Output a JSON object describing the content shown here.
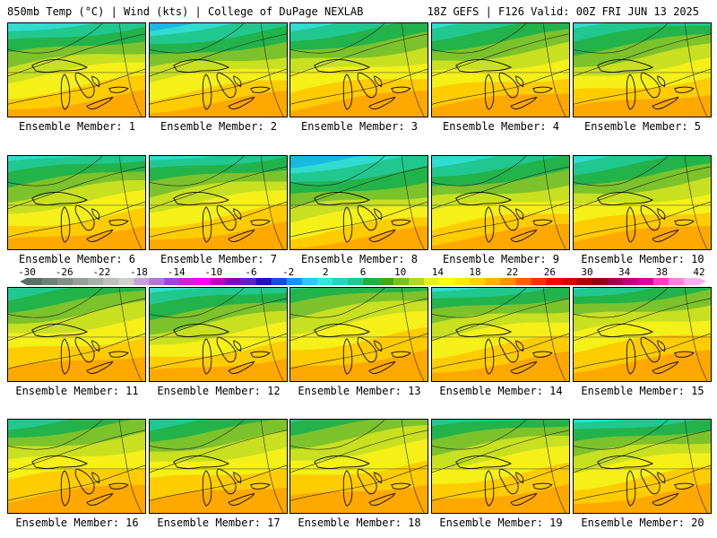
{
  "header": {
    "left": "850mb Temp (°C) | Wind (kts) | College of DuPage NEXLAB",
    "right": "18Z GEFS | F126 Valid: 00Z FRI JUN 13 2025"
  },
  "colorbar": {
    "ticks": [
      "-30",
      "-26",
      "-22",
      "-18",
      "-14",
      "-10",
      "-6",
      "-2",
      "2",
      "6",
      "10",
      "14",
      "18",
      "22",
      "26",
      "30",
      "34",
      "38",
      "42"
    ],
    "colors": [
      "#5b6f66",
      "#6f8078",
      "#828f88",
      "#969f9b",
      "#a8b0ac",
      "#bcc0bd",
      "#cfcfcf",
      "#c89fd6",
      "#b476d3",
      "#a046d2",
      "#cc22cc",
      "#ff00ff",
      "#c000c0",
      "#8a00c0",
      "#6020c8",
      "#2010c0",
      "#1050e0",
      "#2090ff",
      "#30c8f0",
      "#30e8e0",
      "#20d8c0",
      "#20c890",
      "#20b040",
      "#40a820",
      "#78c020",
      "#b0d820",
      "#e8f018",
      "#ffff00",
      "#ffe800",
      "#ffd000",
      "#ffb000",
      "#ff9000",
      "#ff6000",
      "#ff3000",
      "#ff0000",
      "#d80000",
      "#b00000",
      "#900010",
      "#a00050",
      "#c00080",
      "#e000a0",
      "#ff40c0",
      "#ff80e0",
      "#ffb0f0"
    ],
    "range": [
      -30,
      42
    ]
  },
  "panels": [
    {
      "label": "Ensemble Member: 1"
    },
    {
      "label": "Ensemble Member: 2"
    },
    {
      "label": "Ensemble Member: 3"
    },
    {
      "label": "Ensemble Member: 4"
    },
    {
      "label": "Ensemble Member: 5"
    },
    {
      "label": "Ensemble Member: 6"
    },
    {
      "label": "Ensemble Member: 7"
    },
    {
      "label": "Ensemble Member: 8"
    },
    {
      "label": "Ensemble Member: 9"
    },
    {
      "label": "Ensemble Member: 10"
    },
    {
      "label": "Ensemble Member: 11"
    },
    {
      "label": "Ensemble Member: 12"
    },
    {
      "label": "Ensemble Member: 13"
    },
    {
      "label": "Ensemble Member: 14"
    },
    {
      "label": "Ensemble Member: 15"
    },
    {
      "label": "Ensemble Member: 16"
    },
    {
      "label": "Ensemble Member: 17"
    },
    {
      "label": "Ensemble Member: 18"
    },
    {
      "label": "Ensemble Member: 19"
    },
    {
      "label": "Ensemble Member: 20"
    }
  ],
  "map_colors": {
    "cold2": "#18b8e0",
    "cold": "#30dccf",
    "cool": "#20c890",
    "mid": "#22b34a",
    "mild": "#7cc22a",
    "lime": "#c8e020",
    "warm": "#f4f018",
    "hot": "#ffcc00",
    "hotter": "#ffa800",
    "outline": "#000000"
  }
}
